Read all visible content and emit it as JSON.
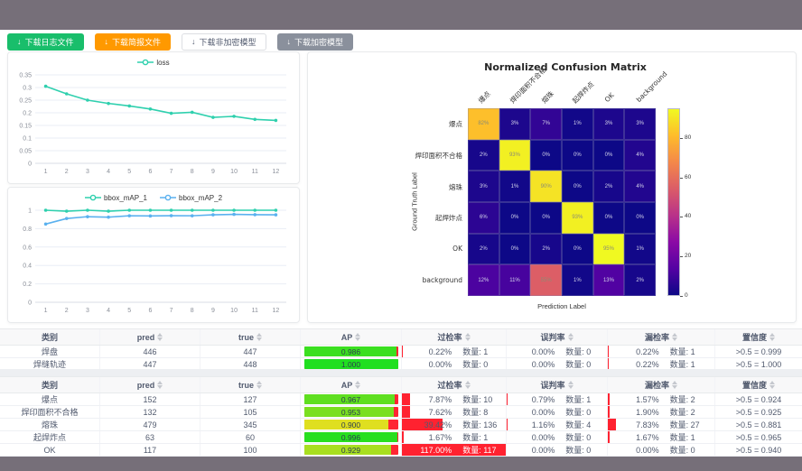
{
  "toolbar": {
    "buttons": [
      {
        "label": "下载日志文件",
        "style": "green"
      },
      {
        "label": "下载简报文件",
        "style": "orange"
      },
      {
        "label": "下载非加密模型",
        "style": "white"
      },
      {
        "label": "下载加密模型",
        "style": "gray"
      }
    ]
  },
  "colors": {
    "teal": "#2fd0ae",
    "blue": "#5ab1ef",
    "green_button": "#19be6b",
    "orange_button": "#ff9900",
    "gray_button": "#8a909c",
    "rate_bar_red": "#ff2230",
    "page_frame": "#766f79"
  },
  "chart_data": [
    {
      "type": "line",
      "name": "loss-chart",
      "x": [
        1,
        2,
        3,
        4,
        5,
        6,
        7,
        8,
        9,
        10,
        11,
        12
      ],
      "series": [
        {
          "name": "loss",
          "color": "#2fd0ae",
          "values": [
            0.305,
            0.275,
            0.25,
            0.237,
            0.227,
            0.215,
            0.198,
            0.202,
            0.182,
            0.186,
            0.174,
            0.17
          ]
        }
      ],
      "ylim": [
        0,
        0.35
      ],
      "yticks": [
        0,
        0.05,
        0.1,
        0.15,
        0.2,
        0.25,
        0.3,
        0.35
      ],
      "grid": true,
      "legend_position": "top"
    },
    {
      "type": "line",
      "name": "bbox-map-chart",
      "x": [
        1,
        2,
        3,
        4,
        5,
        6,
        7,
        8,
        9,
        10,
        11,
        12
      ],
      "series": [
        {
          "name": "bbox_mAP_1",
          "color": "#2fd0ae",
          "values": [
            1,
            0.99,
            1,
            0.99,
            1,
            1,
            1,
            1,
            1,
            1,
            1,
            1
          ]
        },
        {
          "name": "bbox_mAP_2",
          "color": "#5ab1ef",
          "values": [
            0.85,
            0.91,
            0.93,
            0.925,
            0.94,
            0.938,
            0.941,
            0.94,
            0.95,
            0.955,
            0.952,
            0.95
          ]
        }
      ],
      "ylim": [
        0,
        1
      ],
      "yticks": [
        0,
        0.2,
        0.4,
        0.6,
        0.8,
        1
      ],
      "grid": true,
      "legend_position": "top"
    },
    {
      "type": "heatmap",
      "name": "confusion-matrix",
      "title": "Normalized Confusion Matrix",
      "xlabel": "Prediction Label",
      "ylabel": "Ground Truth Label",
      "labels": [
        "爆点",
        "焊印面积不合格",
        "熔珠",
        "起焊炸点",
        "OK",
        "background"
      ],
      "matrix": [
        [
          82,
          3,
          7,
          1,
          3,
          3
        ],
        [
          2,
          93,
          0,
          0,
          0,
          4
        ],
        [
          3,
          1,
          90,
          0,
          2,
          4
        ],
        [
          6,
          0,
          0,
          93,
          0,
          0
        ],
        [
          2,
          0,
          2,
          0,
          95,
          1
        ],
        [
          12,
          11,
          55,
          1,
          13,
          2
        ]
      ],
      "unit": "%",
      "vmin": 0,
      "vmax": 95,
      "colormap": "plasma",
      "colorbar_ticks": [
        0,
        20,
        40,
        60,
        80
      ]
    }
  ],
  "tables": [
    {
      "columns": [
        {
          "label": "类别",
          "sortable": false
        },
        {
          "label": "pred",
          "sortable": true
        },
        {
          "label": "true",
          "sortable": true
        },
        {
          "label": "AP",
          "sortable": true
        },
        {
          "label": "过检率",
          "sortable": true
        },
        {
          "label": "误判率",
          "sortable": true
        },
        {
          "label": "漏检率",
          "sortable": true
        },
        {
          "label": "置信度",
          "sortable": true
        }
      ],
      "rows": [
        {
          "name": "焊盘",
          "pred": "446",
          "true": "447",
          "ap": "0.986",
          "over_pct": "0.22%",
          "over_qty": "数量: 1",
          "mis_pct": "0.00%",
          "mis_qty": "数量: 0",
          "miss_pct": "0.22%",
          "miss_qty": "数量: 1",
          "conf": ">0.5 = 0.999"
        },
        {
          "name": "焊缝轨迹",
          "pred": "447",
          "true": "448",
          "ap": "1.000",
          "over_pct": "0.00%",
          "over_qty": "数量: 0",
          "mis_pct": "0.00%",
          "mis_qty": "数量: 0",
          "miss_pct": "0.22%",
          "miss_qty": "数量: 1",
          "conf": ">0.5 = 1.000"
        }
      ]
    },
    {
      "columns": [
        {
          "label": "类别",
          "sortable": false
        },
        {
          "label": "pred",
          "sortable": true
        },
        {
          "label": "true",
          "sortable": true
        },
        {
          "label": "AP",
          "sortable": true
        },
        {
          "label": "过检率",
          "sortable": true
        },
        {
          "label": "误判率",
          "sortable": true
        },
        {
          "label": "漏检率",
          "sortable": true
        },
        {
          "label": "置信度",
          "sortable": true
        }
      ],
      "rows": [
        {
          "name": "爆点",
          "pred": "152",
          "true": "127",
          "ap": "0.967",
          "over_pct": "7.87%",
          "over_qty": "数量: 10",
          "mis_pct": "0.79%",
          "mis_qty": "数量: 1",
          "miss_pct": "1.57%",
          "miss_qty": "数量: 2",
          "conf": ">0.5 = 0.924"
        },
        {
          "name": "焊印面积不合格",
          "pred": "132",
          "true": "105",
          "ap": "0.953",
          "over_pct": "7.62%",
          "over_qty": "数量: 8",
          "mis_pct": "0.00%",
          "mis_qty": "数量: 0",
          "miss_pct": "1.90%",
          "miss_qty": "数量: 2",
          "conf": ">0.5 = 0.925"
        },
        {
          "name": "熔珠",
          "pred": "479",
          "true": "345",
          "ap": "0.900",
          "over_pct": "39.42%",
          "over_qty": "数量: 136",
          "mis_pct": "1.16%",
          "mis_qty": "数量: 4",
          "miss_pct": "7.83%",
          "miss_qty": "数量: 27",
          "conf": ">0.5 = 0.881"
        },
        {
          "name": "起焊炸点",
          "pred": "63",
          "true": "60",
          "ap": "0.996",
          "over_pct": "1.67%",
          "over_qty": "数量: 1",
          "mis_pct": "0.00%",
          "mis_qty": "数量: 0",
          "miss_pct": "1.67%",
          "miss_qty": "数量: 1",
          "conf": ">0.5 = 0.965"
        },
        {
          "name": "OK",
          "pred": "117",
          "true": "100",
          "ap": "0.929",
          "over_pct": "117.00%",
          "over_qty": "数量: 117",
          "mis_pct": "0.00%",
          "mis_qty": "数量: 0",
          "miss_pct": "0.00%",
          "miss_qty": "数量: 0",
          "conf": ">0.5 = 0.940"
        }
      ]
    }
  ]
}
